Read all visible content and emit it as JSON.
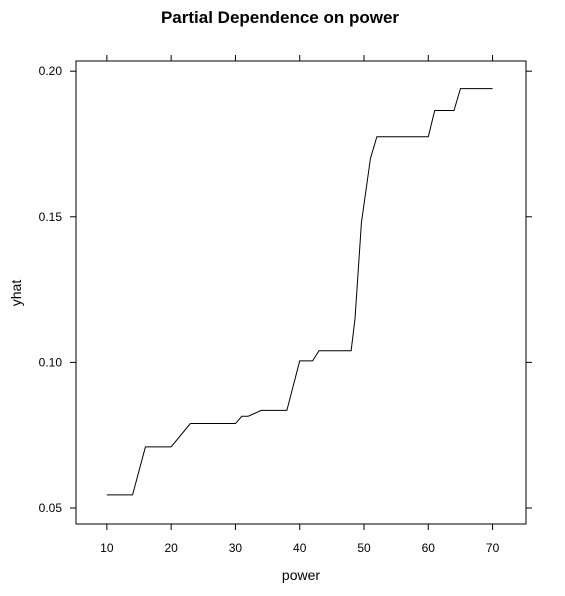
{
  "chart_data": {
    "type": "line",
    "title": "Partial Dependence on power",
    "xlabel": "power",
    "ylabel": "yhat",
    "xlim": [
      5.2,
      75.2
    ],
    "ylim": [
      0.0445,
      0.2035
    ],
    "xticks": [
      10,
      20,
      30,
      40,
      50,
      60,
      70
    ],
    "yticks": [
      0.05,
      0.1,
      0.15,
      0.2
    ],
    "ytick_labels": [
      "0.05",
      "0.10",
      "0.15",
      "0.20"
    ],
    "grid": false,
    "series": [
      {
        "x": [
          10,
          14,
          16,
          20,
          23,
          30,
          31,
          32,
          34,
          38,
          40,
          42,
          43,
          46,
          48,
          48.6,
          49.6,
          51,
          52,
          60,
          61,
          64,
          65,
          70
        ],
        "y": [
          0.0545,
          0.0545,
          0.071,
          0.071,
          0.079,
          0.079,
          0.0815,
          0.0815,
          0.0835,
          0.0835,
          0.1005,
          0.1005,
          0.104,
          0.104,
          0.104,
          0.115,
          0.148,
          0.17,
          0.1775,
          0.1775,
          0.1865,
          0.1865,
          0.194,
          0.194
        ]
      }
    ]
  }
}
